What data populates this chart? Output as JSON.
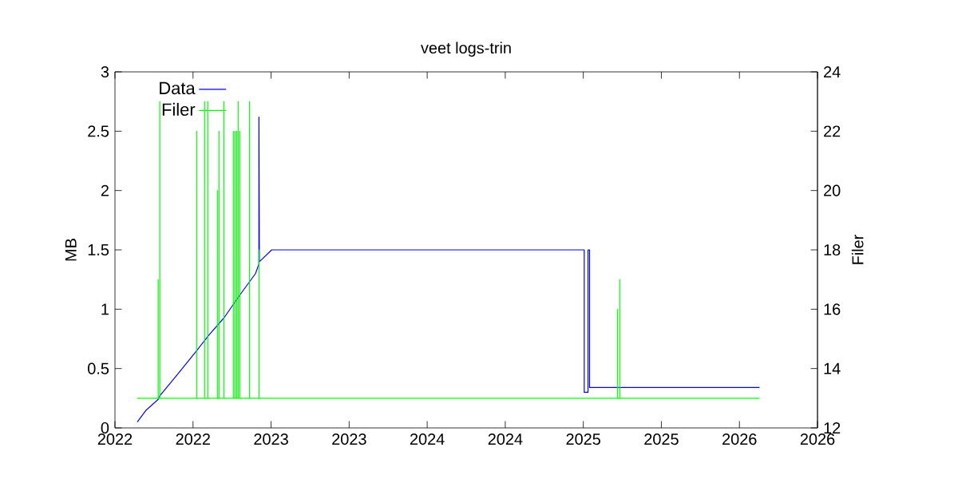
{
  "chart_data": {
    "type": "line",
    "title": "veet logs-trin",
    "ylabel": "MB",
    "y2label": "Filer",
    "xlim": [
      2022,
      2026.5
    ],
    "xticks": [
      {
        "value": 2022,
        "label": "2022"
      },
      {
        "value": 2022.5,
        "label": "2022"
      },
      {
        "value": 2023,
        "label": "2023"
      },
      {
        "value": 2023.5,
        "label": "2023"
      },
      {
        "value": 2024,
        "label": "2024"
      },
      {
        "value": 2024.5,
        "label": "2024"
      },
      {
        "value": 2025,
        "label": "2025"
      },
      {
        "value": 2025.5,
        "label": "2025"
      },
      {
        "value": 2026,
        "label": "2026"
      },
      {
        "value": 2026.5,
        "label": "2026"
      }
    ],
    "ylim": [
      0,
      3
    ],
    "yticks": [
      0,
      0.5,
      1,
      1.5,
      2,
      2.5,
      3
    ],
    "y2lim": [
      12,
      24
    ],
    "y2ticks": [
      12,
      14,
      16,
      18,
      20,
      22,
      24
    ],
    "legend": "top left",
    "series": [
      {
        "name": "Data",
        "color": "#0000ff",
        "x": [
          2022.143,
          2022.2,
          2022.277,
          2022.287,
          2022.4,
          2022.523,
          2022.6,
          2022.7,
          2022.8,
          2022.9,
          2022.922,
          2022.922,
          2022.925,
          2023.004,
          2025.006,
          2025.006,
          2025.03,
          2025.03,
          2025.04,
          2025.04,
          2026.129
        ],
        "values": [
          0.05,
          0.15,
          0.24,
          0.27,
          0.45,
          0.65,
          0.78,
          0.93,
          1.12,
          1.3,
          1.38,
          2.62,
          1.4,
          1.5,
          1.5,
          0.3,
          0.3,
          1.5,
          1.5,
          0.34,
          0.34
        ]
      },
      {
        "name": "Filer",
        "color": "#00ff00",
        "axis": "y2",
        "x": [
          2022.143,
          2022.277,
          2022.277,
          2022.277,
          2022.287,
          2022.287,
          2022.287,
          2022.523,
          2022.523,
          2022.523,
          2022.574,
          2022.574,
          2022.574,
          2022.594,
          2022.594,
          2022.594,
          2022.656,
          2022.656,
          2022.656,
          2022.666,
          2022.666,
          2022.666,
          2022.697,
          2022.697,
          2022.697,
          2022.758,
          2022.758,
          2022.758,
          2022.768,
          2022.768,
          2022.768,
          2022.779,
          2022.779,
          2022.779,
          2022.789,
          2022.789,
          2022.789,
          2022.799,
          2022.799,
          2022.799,
          2022.861,
          2022.861,
          2022.861,
          2022.922,
          2022.922,
          2022.922,
          2025.22,
          2025.22,
          2025.22,
          2025.233,
          2025.233,
          2025.233,
          2026.129
        ],
        "values": [
          13,
          13,
          17,
          13,
          13,
          23,
          13,
          13,
          22,
          13,
          13,
          23,
          13,
          13,
          23,
          13,
          13,
          20,
          13,
          13,
          22,
          13,
          13,
          23,
          13,
          13,
          22,
          13,
          13,
          22,
          13,
          13,
          22,
          13,
          13,
          23,
          13,
          13,
          22,
          13,
          13,
          23,
          13,
          13,
          18,
          13,
          13,
          16,
          13,
          13,
          17,
          13,
          13
        ]
      }
    ]
  }
}
